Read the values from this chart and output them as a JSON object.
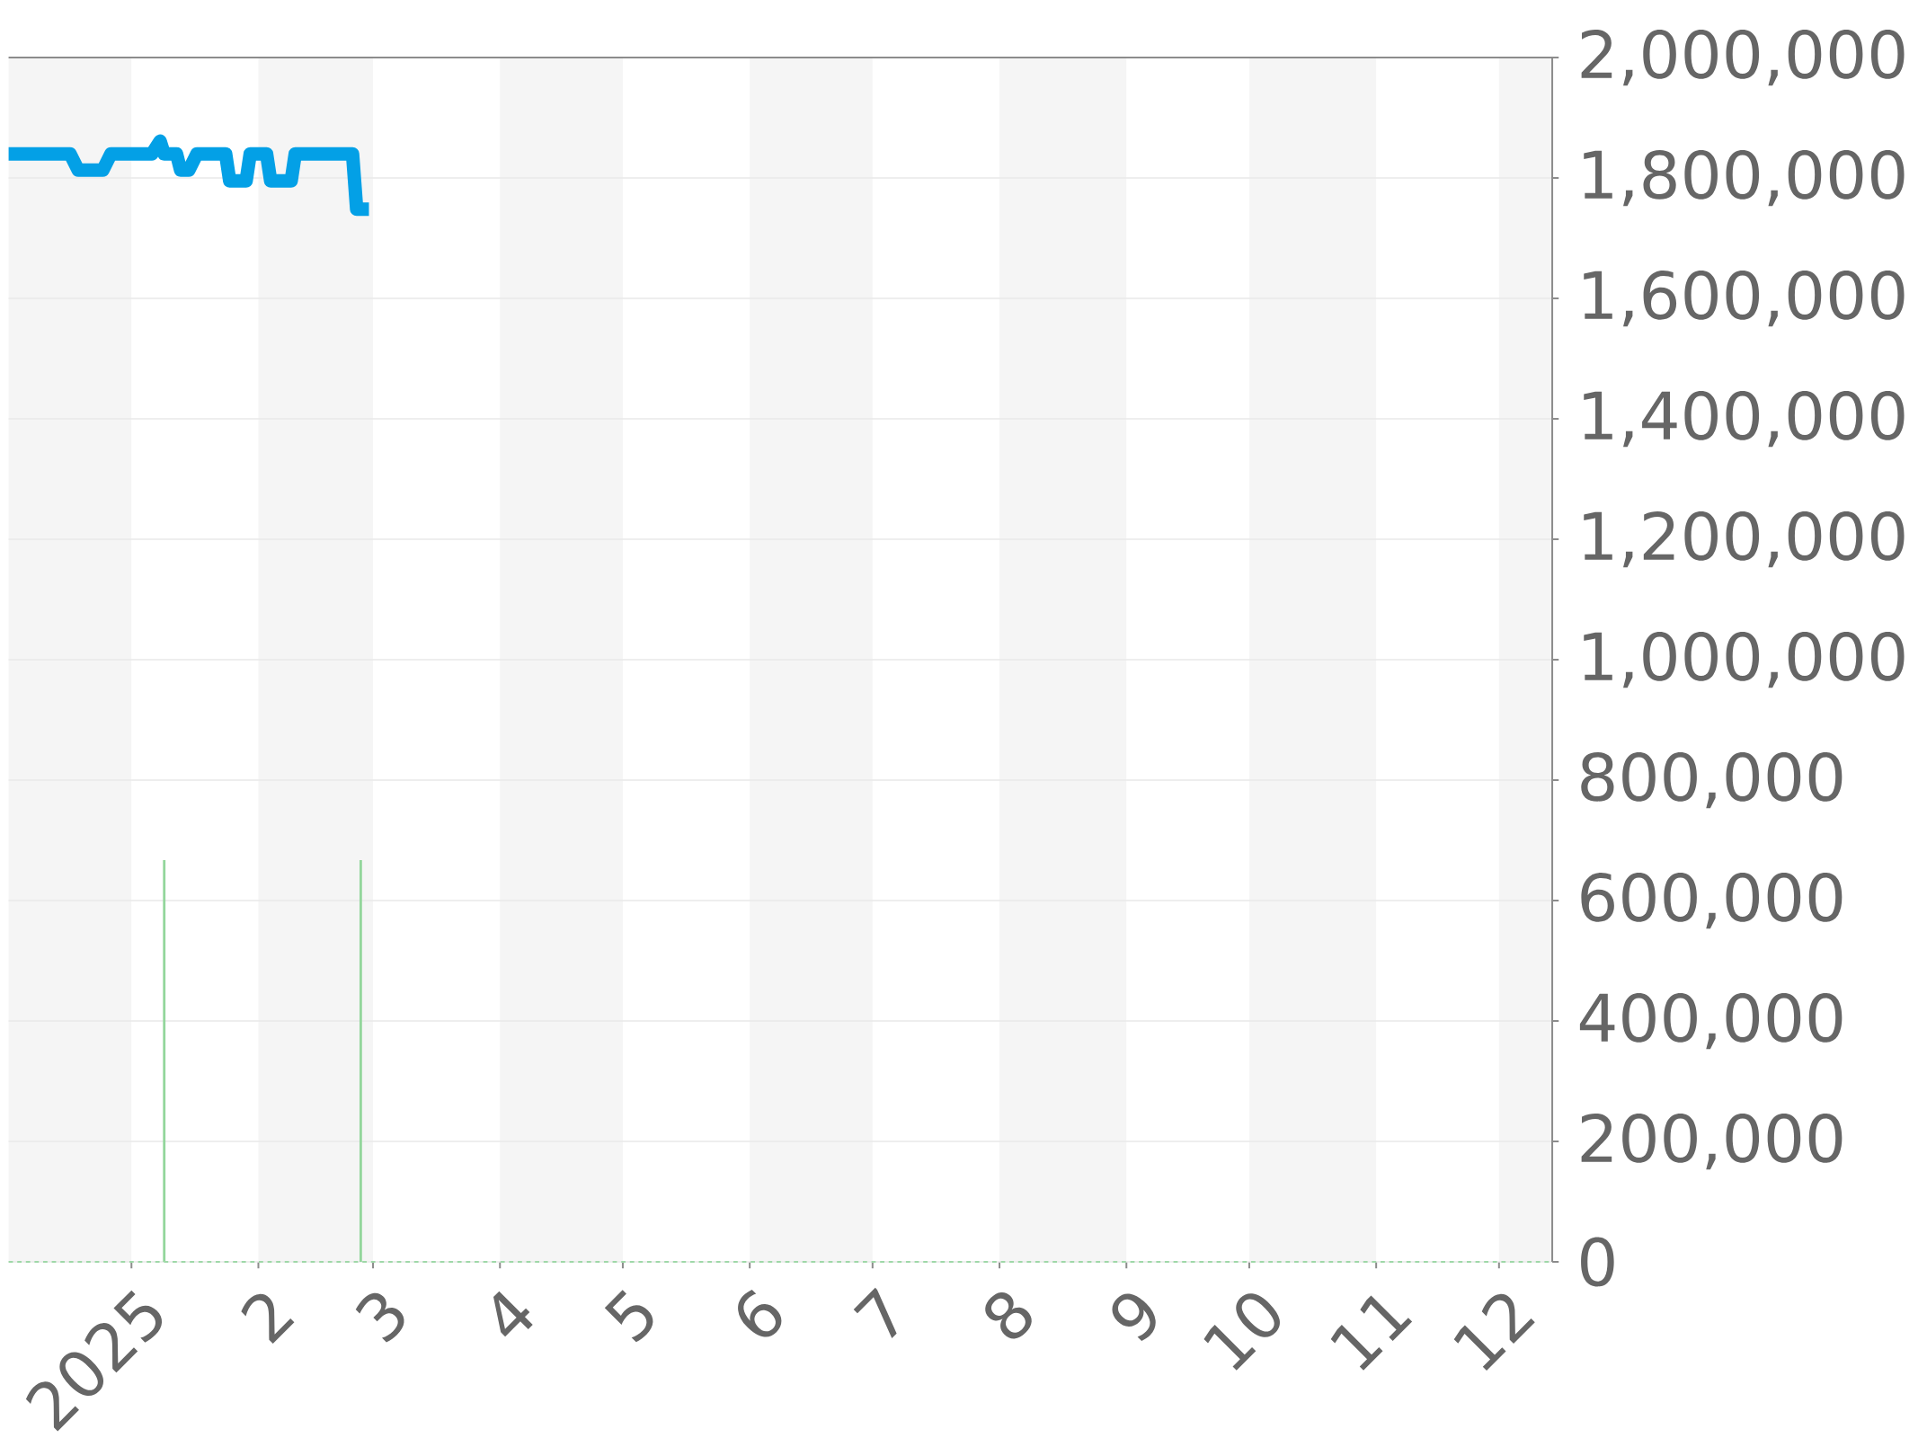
{
  "chart_data": {
    "type": "line",
    "series": [
      {
        "color": "#03a0e6",
        "x": [
          "2024-12-02",
          "2024-12-17",
          "2024-12-19",
          "2024-12-25",
          "2024-12-27",
          "2025-01-06",
          "2025-01-08",
          "2025-01-09",
          "2025-01-12",
          "2025-01-13",
          "2025-01-15",
          "2025-01-17",
          "2025-01-24",
          "2025-01-25",
          "2025-01-29",
          "2025-01-30",
          "2025-02-03",
          "2025-02-04",
          "2025-02-09",
          "2025-02-10",
          "2025-02-24",
          "2025-02-25",
          "2025-02-28"
        ],
        "values": [
          1840000,
          1840000,
          1813000,
          1813000,
          1840000,
          1840000,
          1861000,
          1840000,
          1840000,
          1813000,
          1813000,
          1840000,
          1840000,
          1795000,
          1795000,
          1840000,
          1840000,
          1795000,
          1795000,
          1840000,
          1840000,
          1748000,
          1748000
        ]
      },
      {
        "type": "bar",
        "color": "#93d69c",
        "x": [
          "2025-01-09",
          "2025-02-26"
        ],
        "values": [
          667000,
          667000
        ]
      }
    ],
    "xlim": [
      "2024-12-02",
      "2025-12-14"
    ],
    "xticks": [
      {
        "value": "2025-01-01",
        "label": "2025"
      },
      {
        "value": "2025-02-01",
        "label": "2"
      },
      {
        "value": "2025-03-01",
        "label": "3"
      },
      {
        "value": "2025-04-01",
        "label": "4"
      },
      {
        "value": "2025-05-01",
        "label": "5"
      },
      {
        "value": "2025-06-01",
        "label": "6"
      },
      {
        "value": "2025-07-01",
        "label": "7"
      },
      {
        "value": "2025-08-01",
        "label": "8"
      },
      {
        "value": "2025-09-01",
        "label": "9"
      },
      {
        "value": "2025-10-01",
        "label": "10"
      },
      {
        "value": "2025-11-01",
        "label": "11"
      },
      {
        "value": "2025-12-01",
        "label": "12"
      }
    ],
    "ylim": [
      0,
      2000000
    ],
    "yticks": [
      0,
      {
        "value": 200000,
        "label": "200,000"
      },
      {
        "value": 400000,
        "label": "400,000"
      },
      {
        "value": 600000,
        "label": "600,000"
      },
      {
        "value": 800000,
        "label": "800,000"
      },
      {
        "value": 1000000,
        "label": "1,000,000"
      },
      {
        "value": 1200000,
        "label": "1,200,000"
      },
      {
        "value": 1400000,
        "label": "1,400,000"
      },
      {
        "value": 1600000,
        "label": "1,600,000"
      },
      {
        "value": 1800000,
        "label": "1,800,000"
      },
      {
        "value": 2000000,
        "label": "2,000,000"
      }
    ],
    "grid": "y",
    "bands": [
      {
        "axis": "x",
        "from": "2024-12-02",
        "to": "2025-01-01",
        "color": "#f5f5f5"
      },
      {
        "axis": "x",
        "from": "2025-02-01",
        "to": "2025-03-01",
        "color": "#f5f5f5"
      },
      {
        "axis": "x",
        "from": "2025-04-01",
        "to": "2025-05-01",
        "color": "#f5f5f5"
      },
      {
        "axis": "x",
        "from": "2025-06-01",
        "to": "2025-07-01",
        "color": "#f5f5f5"
      },
      {
        "axis": "x",
        "from": "2025-08-01",
        "to": "2025-09-01",
        "color": "#f5f5f5"
      },
      {
        "axis": "x",
        "from": "2025-10-01",
        "to": "2025-11-01",
        "color": "#f5f5f5"
      },
      {
        "axis": "x",
        "from": "2025-12-01",
        "to": "2025-12-14",
        "color": "#f5f5f5"
      }
    ],
    "ref_lines": [
      {
        "axis": "y",
        "value": 0,
        "color": "#9fd8a8",
        "line_style": "dashed"
      }
    ]
  }
}
